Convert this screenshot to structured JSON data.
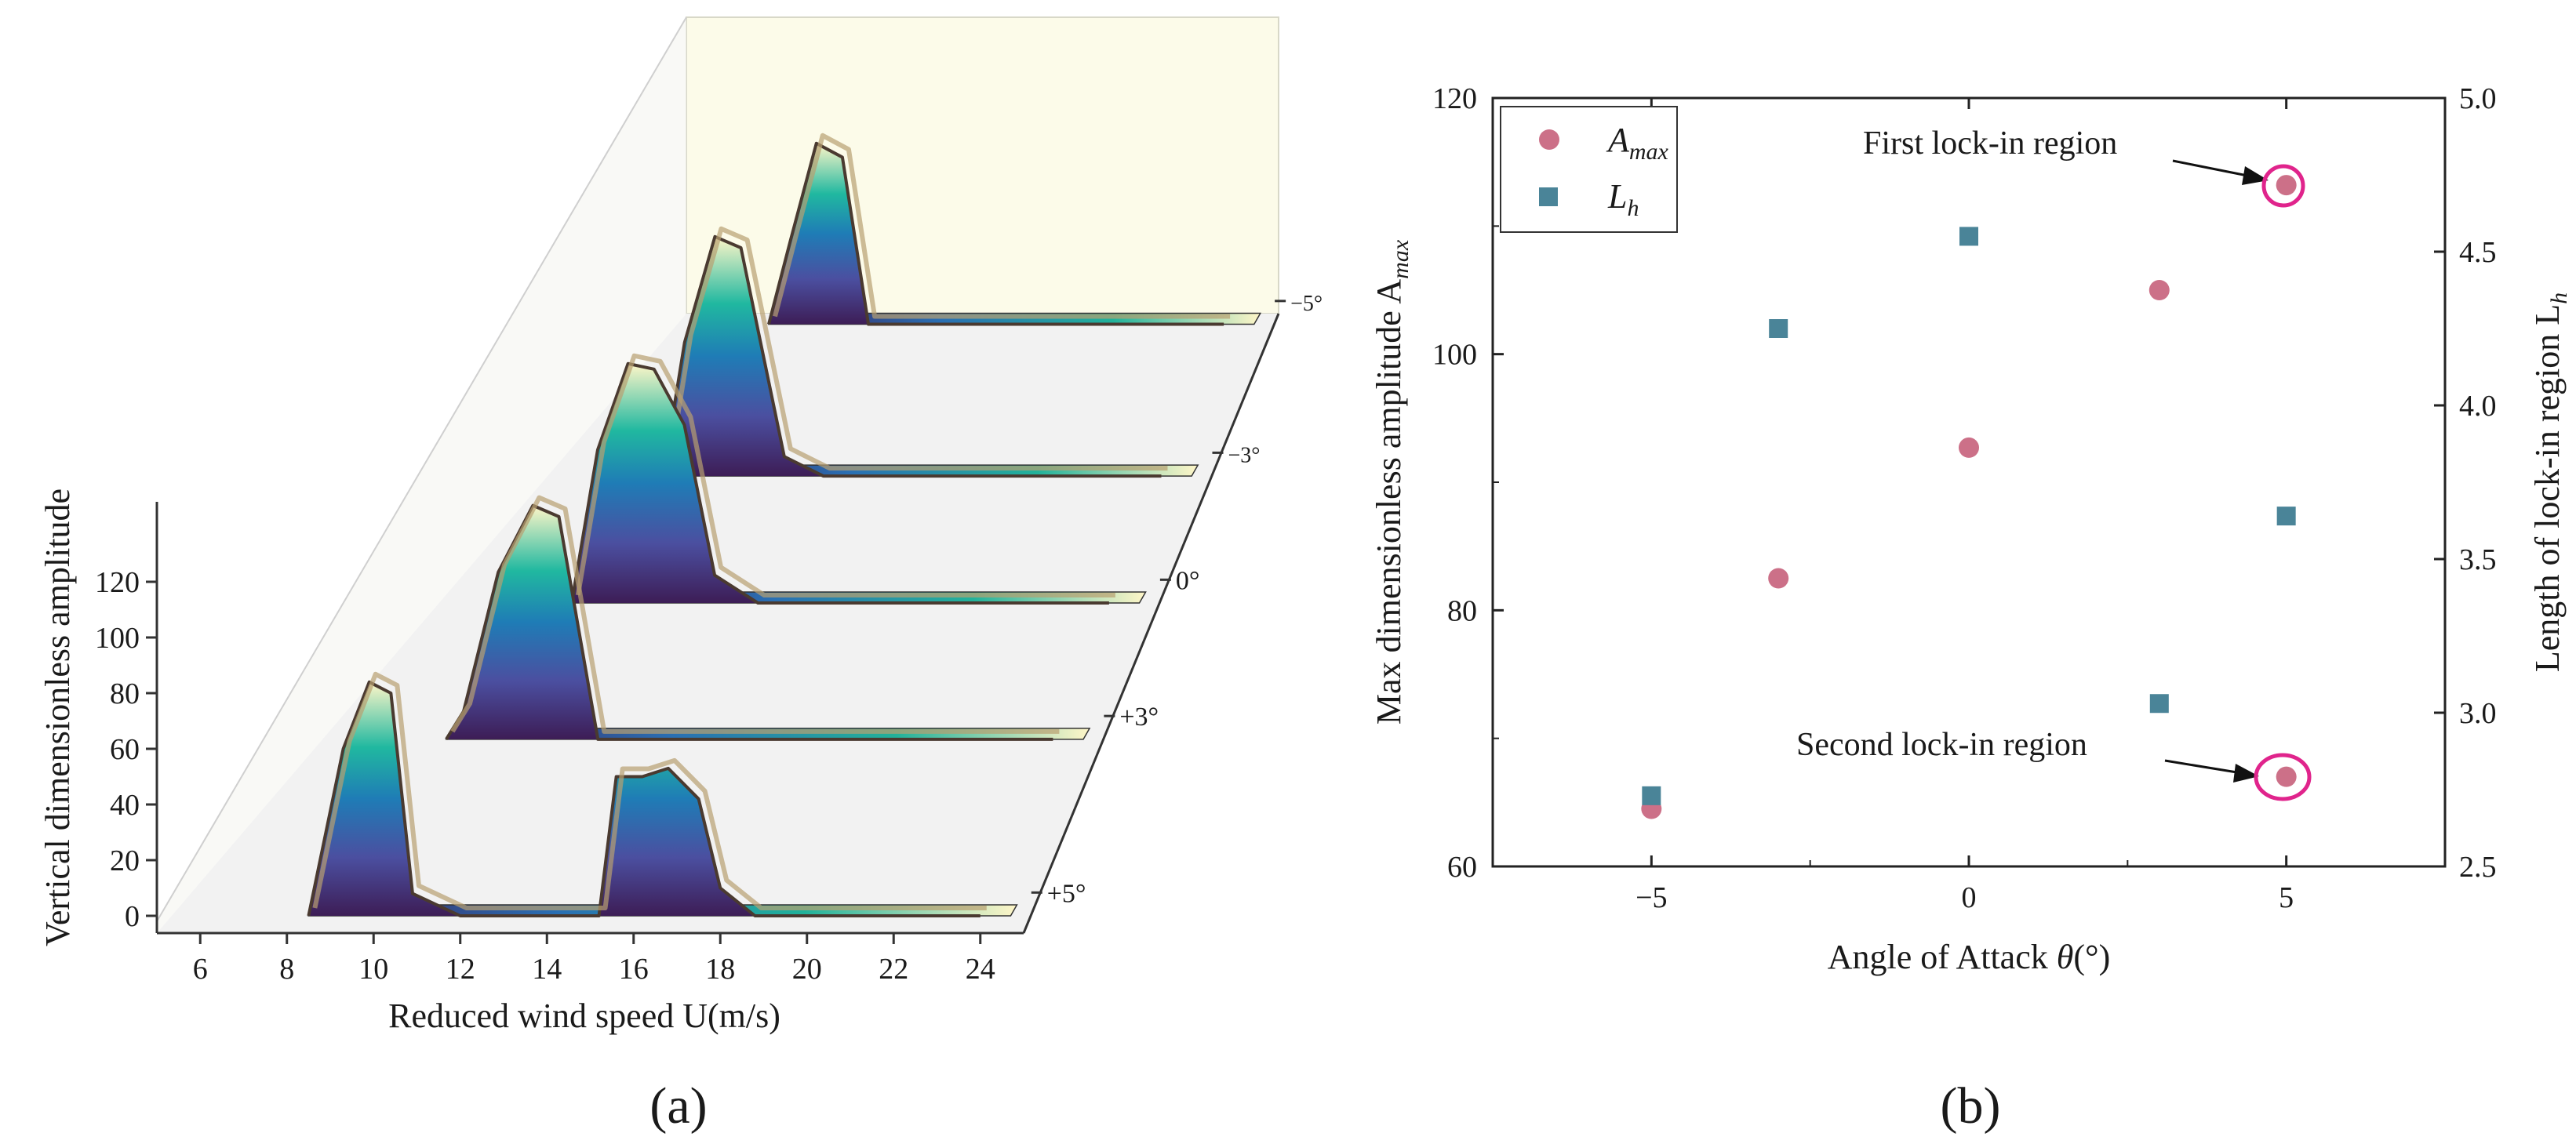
{
  "panels": {
    "a": {
      "label": "(a)"
    },
    "b": {
      "label": "(b)"
    }
  },
  "chart_data": [
    {
      "type": "area",
      "panel": "a",
      "title": "",
      "xlabel": "Reduced wind speed U(m/s)",
      "ylabel": "Vertical dimensionless amplitude",
      "xlim": [
        5,
        25
      ],
      "ylim": [
        0,
        130
      ],
      "x_ticks": [
        "6",
        "8",
        "10",
        "12",
        "14",
        "16",
        "18",
        "20",
        "22",
        "24"
      ],
      "y_ticks": [
        "0",
        "20",
        "40",
        "60",
        "80",
        "100",
        "120"
      ],
      "depth_ticks": [
        "+5°",
        "+3°",
        "0°",
        "−3°",
        "−5°"
      ],
      "series": [
        {
          "name": "+5°",
          "x": [
            8.5,
            9.3,
            9.9,
            10.4,
            10.9,
            12.0,
            15.2,
            15.6,
            16.2,
            16.8,
            17.5,
            18.0,
            18.8,
            24.0
          ],
          "y": [
            0,
            60,
            84,
            80,
            8,
            0,
            0,
            50,
            50,
            53,
            42,
            10,
            0,
            0
          ]
        },
        {
          "name": "+3°",
          "x": [
            10.0,
            10.4,
            11.2,
            12.0,
            12.6,
            13.5,
            24.0
          ],
          "y": [
            0,
            10,
            60,
            84,
            80,
            0,
            0
          ]
        },
        {
          "name": "0°",
          "x": [
            11.6,
            12.2,
            12.9,
            13.5,
            14.2,
            14.9,
            15.9,
            24.0
          ],
          "y": [
            0,
            55,
            86,
            84,
            64,
            10,
            0,
            0
          ]
        },
        {
          "name": "−3°",
          "x": [
            12.5,
            13.0,
            13.7,
            14.3,
            15.3,
            16.2,
            24.0
          ],
          "y": [
            0,
            48,
            86,
            82,
            7,
            0,
            0
          ]
        },
        {
          "name": "−5°",
          "x": [
            13.5,
            14.0,
            14.6,
            15.2,
            15.8,
            24.0
          ],
          "y": [
            0,
            30,
            65,
            60,
            0,
            0
          ]
        }
      ]
    },
    {
      "type": "scatter",
      "panel": "b",
      "title": "",
      "xlabel": "Angle of Attack θ(°)",
      "ylabel_left": "Max dimensionless amplitude A",
      "ylabel_left_sub": "max",
      "ylabel_right": "Length of lock-in region L",
      "ylabel_right_sub": "h",
      "xlim": [
        -7.5,
        7.5
      ],
      "ylim_left": [
        60,
        120
      ],
      "ylim_right": [
        2.5,
        5.0
      ],
      "x_ticks": [
        -5,
        0,
        5
      ],
      "y_ticks_left": [
        60,
        80,
        100,
        120
      ],
      "y_ticks_right": [
        "2.5",
        "3.0",
        "3.5",
        "4.0",
        "4.5",
        "5.0"
      ],
      "legend_position": "top-left",
      "series": [
        {
          "name": "A",
          "name_sub": "max",
          "axis": "left",
          "marker": "circle",
          "color": "#cc7088",
          "x": [
            -5,
            -3,
            0,
            3,
            5
          ],
          "y": [
            64.5,
            82.5,
            92.7,
            105.0,
            113.2
          ]
        },
        {
          "name": "A",
          "name_sub": "max",
          "axis": "left",
          "marker": "circle",
          "color": "#cc7088",
          "x": [
            5
          ],
          "y": [
            67.0
          ],
          "note": "second point at θ=5"
        },
        {
          "name": "L",
          "name_sub": "h",
          "axis": "right",
          "marker": "square",
          "color": "#4a8498",
          "x": [
            -5,
            -3,
            0,
            3,
            5
          ],
          "y": [
            2.73,
            4.25,
            4.55,
            3.03,
            3.64
          ]
        }
      ],
      "annotations": [
        {
          "text": "First lock-in region",
          "x": 5,
          "y": 113.2,
          "highlight_color": "#e0248c"
        },
        {
          "text": "Second lock-in region",
          "x": 5,
          "y": 67.0,
          "highlight_color": "#e0248c"
        }
      ]
    }
  ]
}
